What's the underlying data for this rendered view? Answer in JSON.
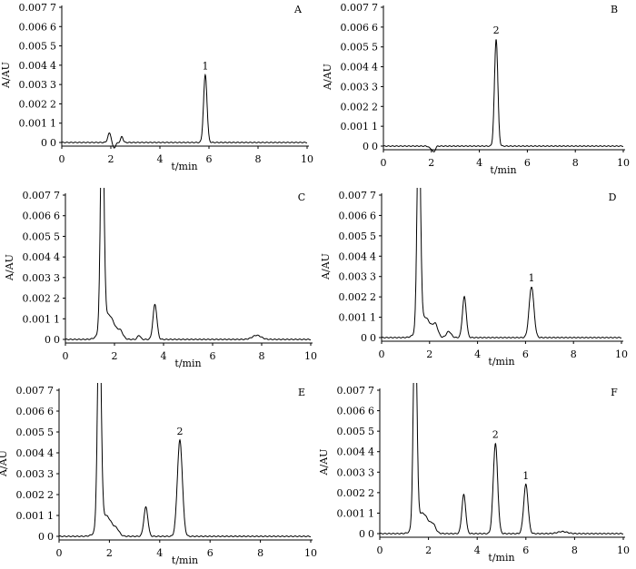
{
  "figure": {
    "y_tick_labels": [
      "0",
      "0.001",
      "0.002",
      "0.003",
      "0.004",
      "0.005",
      "0.006",
      "0.007"
    ],
    "y_tick_labels_right": [
      "0",
      "1",
      "2",
      "3",
      "4",
      "5",
      "6",
      "7"
    ],
    "x_tick_labels": [
      "0",
      "2",
      "4",
      "6",
      "8",
      "10"
    ],
    "ylabel": "A/AU",
    "xlabel": "t/min",
    "line_color": "#000000"
  },
  "chart_data": [
    {
      "type": "line",
      "panel": "A",
      "xlabel": "t/min",
      "ylabel": "A/AU",
      "xlim": [
        0,
        10
      ],
      "ylim": [
        0,
        0.007
      ],
      "peaks": [
        {
          "label": "",
          "x": 1.95,
          "y": 0.0005,
          "w": 0.07
        },
        {
          "label": "",
          "x": 2.12,
          "y": -0.0003,
          "w": 0.07
        },
        {
          "label": "",
          "x": 2.45,
          "y": 0.0003,
          "w": 0.05
        },
        {
          "label": "1",
          "x": 5.85,
          "y": 0.0035,
          "w": 0.07
        }
      ]
    },
    {
      "type": "line",
      "panel": "B",
      "xlabel": "t/min",
      "ylabel": "A/AU",
      "xlim": [
        0,
        10
      ],
      "ylim": [
        0,
        0.007
      ],
      "peaks": [
        {
          "label": "",
          "x": 1.95,
          "y": -0.0001,
          "w": 0.06
        },
        {
          "label": "",
          "x": 2.1,
          "y": -0.0003,
          "w": 0.06
        },
        {
          "label": "2",
          "x": 4.7,
          "y": 0.0054,
          "w": 0.07
        }
      ]
    },
    {
      "type": "line",
      "panel": "C",
      "xlabel": "t/min",
      "ylabel": "A/AU",
      "xlim": [
        0,
        10
      ],
      "ylim": [
        0,
        0.007
      ],
      "peaks": [
        {
          "label": "",
          "x": 1.5,
          "y": 0.011,
          "w": 0.07
        },
        {
          "label": "",
          "x": 1.75,
          "y": 0.0012,
          "w": 0.25
        },
        {
          "label": "",
          "x": 2.25,
          "y": 0.0003,
          "w": 0.1
        },
        {
          "label": "",
          "x": 3.0,
          "y": 0.0002,
          "w": 0.06
        },
        {
          "label": "",
          "x": 3.65,
          "y": 0.0017,
          "w": 0.08
        },
        {
          "label": "",
          "x": 7.8,
          "y": 0.0002,
          "w": 0.18
        }
      ]
    },
    {
      "type": "line",
      "panel": "D",
      "xlabel": "t/min",
      "ylabel": "A/AU",
      "xlim": [
        0,
        10
      ],
      "ylim": [
        0,
        0.007
      ],
      "peaks": [
        {
          "label": "",
          "x": 1.55,
          "y": 0.011,
          "w": 0.07
        },
        {
          "label": "",
          "x": 1.8,
          "y": 0.001,
          "w": 0.25
        },
        {
          "label": "",
          "x": 2.25,
          "y": 0.0005,
          "w": 0.1
        },
        {
          "label": "",
          "x": 2.8,
          "y": 0.0003,
          "w": 0.1
        },
        {
          "label": "",
          "x": 3.45,
          "y": 0.002,
          "w": 0.08
        },
        {
          "label": "1",
          "x": 6.25,
          "y": 0.0025,
          "w": 0.1
        }
      ]
    },
    {
      "type": "line",
      "panel": "E",
      "xlabel": "t/min",
      "ylabel": "A/AU",
      "xlim": [
        0,
        10
      ],
      "ylim": [
        0,
        0.007
      ],
      "peaks": [
        {
          "label": "",
          "x": 1.6,
          "y": 0.011,
          "w": 0.07
        },
        {
          "label": "",
          "x": 1.85,
          "y": 0.001,
          "w": 0.25
        },
        {
          "label": "",
          "x": 2.3,
          "y": 0.0002,
          "w": 0.1
        },
        {
          "label": "",
          "x": 3.45,
          "y": 0.0014,
          "w": 0.08
        },
        {
          "label": "2",
          "x": 4.8,
          "y": 0.0046,
          "w": 0.1
        }
      ]
    },
    {
      "type": "line",
      "panel": "F",
      "xlabel": "t/min",
      "ylabel": "A/AU",
      "xlim": [
        0,
        10
      ],
      "ylim": [
        0,
        0.007
      ],
      "peaks": [
        {
          "label": "",
          "x": 1.45,
          "y": 0.011,
          "w": 0.07
        },
        {
          "label": "",
          "x": 1.75,
          "y": 0.001,
          "w": 0.25
        },
        {
          "label": "",
          "x": 2.2,
          "y": 0.0003,
          "w": 0.1
        },
        {
          "label": "",
          "x": 3.45,
          "y": 0.0019,
          "w": 0.08
        },
        {
          "label": "2",
          "x": 4.75,
          "y": 0.0044,
          "w": 0.09
        },
        {
          "label": "1",
          "x": 6.0,
          "y": 0.0024,
          "w": 0.09
        },
        {
          "label": "",
          "x": 7.5,
          "y": 0.0001,
          "w": 0.2
        }
      ]
    }
  ]
}
